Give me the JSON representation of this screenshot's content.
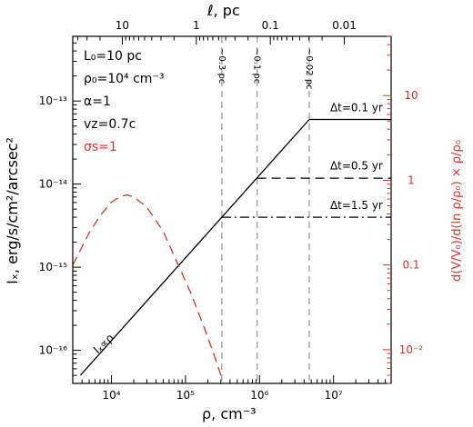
{
  "chart_data": {
    "type": "line",
    "xlabel": "ρ,  cm⁻³",
    "ylabel": "Iₓ,  erg/s/cm²/arcsec²",
    "y2label": "d(V/V₀)/d(ln ρ/ρ₀) × ρ/ρ₀",
    "top_axis_label": "ℓ,  pc",
    "x_scale": "log",
    "y_scale": "log",
    "y2_scale": "log",
    "xlim": [
      3000,
      60000000
    ],
    "ylim": [
      4e-17,
      6e-13
    ],
    "y2lim": [
      0.004,
      50
    ],
    "x_ticks": [
      {
        "value": 10000,
        "label": "10⁴"
      },
      {
        "value": 100000,
        "label": "10⁵"
      },
      {
        "value": 1000000,
        "label": "10⁶"
      },
      {
        "value": 10000000,
        "label": "10⁷"
      }
    ],
    "y_ticks": [
      {
        "value": 1e-16,
        "label": "10⁻¹⁶"
      },
      {
        "value": 1e-15,
        "label": "10⁻¹⁵"
      },
      {
        "value": 1e-14,
        "label": "10⁻¹⁴"
      },
      {
        "value": 1e-13,
        "label": "10⁻¹³"
      }
    ],
    "y2_ticks": [
      {
        "value": 0.01,
        "label": "10⁻²"
      },
      {
        "value": 0.1,
        "label": "0.1"
      },
      {
        "value": 1,
        "label": "1"
      },
      {
        "value": 10,
        "label": "10"
      }
    ],
    "top_ticks": [
      {
        "rho": 14000,
        "label": "10"
      },
      {
        "rho": 140000,
        "label": "1"
      },
      {
        "rho": 1400000,
        "label": "0.1"
      },
      {
        "rho": 14000000,
        "label": "0.01"
      }
    ],
    "params": [
      {
        "text": "L₀=10 pc",
        "color": "#000000"
      },
      {
        "text": "ρ₀=10⁴ cm⁻³",
        "color": "#000000"
      },
      {
        "text": "α=1",
        "color": "#000000"
      },
      {
        "text": "vz=0.7c",
        "color": "#000000"
      },
      {
        "text": "σs=1",
        "color": "#e0302a"
      }
    ],
    "series": [
      {
        "name": "Iₓ∝ρ",
        "style": "solid",
        "color": "#000000",
        "axis": "left",
        "points": [
          [
            3800,
            5e-17
          ],
          [
            4700000,
            6e-14
          ]
        ]
      },
      {
        "name": "Δt=0.1 yr",
        "style": "solid",
        "color": "#000000",
        "axis": "left",
        "points": [
          [
            4700000,
            6e-14
          ],
          [
            60000000,
            6e-14
          ]
        ]
      },
      {
        "name": "Δt=0.5 yr",
        "style": "dashed",
        "color": "#000000",
        "axis": "left",
        "points": [
          [
            930000,
            1.18e-14
          ],
          [
            60000000,
            1.18e-14
          ]
        ]
      },
      {
        "name": "Δt=1.5 yr",
        "style": "dashdot",
        "color": "#000000",
        "axis": "left",
        "points": [
          [
            310000,
            4e-15
          ],
          [
            60000000,
            4e-15
          ]
        ]
      },
      {
        "name": "",
        "style": "dashed",
        "color": "#e0302a",
        "axis": "right",
        "points": [
          [
            3000,
            0.1
          ],
          [
            5000,
            0.24
          ],
          [
            7000,
            0.38
          ],
          [
            10000,
            0.55
          ],
          [
            13000,
            0.64
          ],
          [
            16000,
            0.67
          ],
          [
            20000,
            0.64
          ],
          [
            30000,
            0.48
          ],
          [
            50000,
            0.25
          ],
          [
            80000,
            0.1
          ],
          [
            120000,
            0.045
          ],
          [
            180000,
            0.018
          ],
          [
            240000,
            0.009
          ],
          [
            300000,
            0.005
          ]
        ]
      }
    ],
    "vlines": [
      {
        "x": 310000,
        "label": "~0.3 pc"
      },
      {
        "x": 930000,
        "label": "~0.1 pc"
      },
      {
        "x": 4700000,
        "label": "~0.02 pc"
      }
    ],
    "annotations": [
      {
        "text": "Δt=0.1 yr",
        "x": 9000000,
        "y": 7.5e-14
      },
      {
        "text": "Δt=0.5 yr",
        "x": 9000000,
        "y": 1.5e-14
      },
      {
        "text": "Δt=1.5 yr",
        "x": 9000000,
        "y": 5e-15
      },
      {
        "text": "Iₓ∝ρ",
        "x": 6500,
        "y": 9e-17
      }
    ]
  }
}
